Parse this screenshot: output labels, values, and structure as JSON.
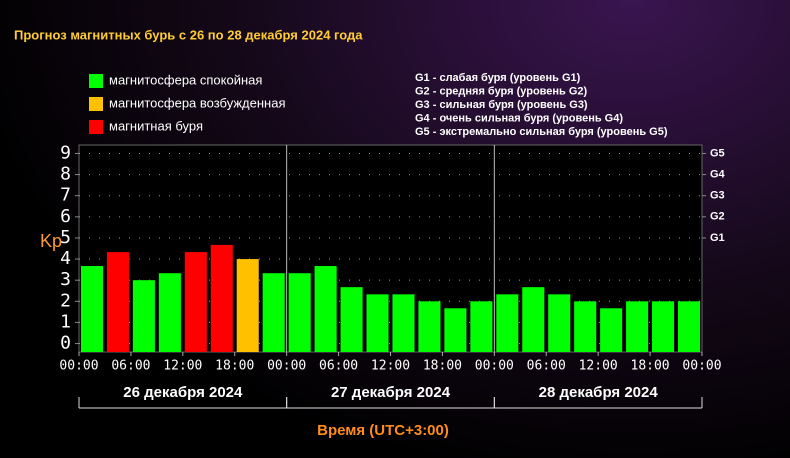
{
  "chart_data": {
    "type": "bar",
    "title": "Прогноз магнитных бурь с 26 по 28 декабря 2024 года",
    "ylabel": "Kp",
    "xlabel": "Время (UTC+3:00)",
    "legend": [
      {
        "name": "магнитосфера спокойная",
        "color": "#00ff00"
      },
      {
        "name": "магнитосфера возбужденная",
        "color": "#ffc000"
      },
      {
        "name": "магнитная буря",
        "color": "#ff0000"
      }
    ],
    "notes": [
      "G1 - слабая буря (уровень G1)",
      "G2 - средняя буря (уровень G2)",
      "G3 - сильная буря (уровень G3)",
      "G4 - очень сильная буря (уровень G4)",
      "G5 - экстремально сильная буря (уровень G5)"
    ],
    "x": [
      1.5,
      4.5,
      7.5,
      10.5,
      13.5,
      16.5,
      19.5,
      22.5,
      25.5,
      28.5,
      31.5,
      34.5,
      37.5,
      40.5,
      43.5,
      46.5,
      49.5,
      52.5,
      55.5,
      58.5,
      61.5,
      64.5,
      67.5,
      70.5
    ],
    "values": [
      3.67,
      4.33,
      3.0,
      3.33,
      4.33,
      4.67,
      4.0,
      3.33,
      3.33,
      3.67,
      2.67,
      2.33,
      2.33,
      2.0,
      1.67,
      2.0,
      2.33,
      2.67,
      2.33,
      2.0,
      1.67,
      2.0,
      2.0,
      2.0
    ],
    "colors": [
      "#00ff00",
      "#ff0000",
      "#00ff00",
      "#00ff00",
      "#ff0000",
      "#ff0000",
      "#ffc000",
      "#00ff00",
      "#00ff00",
      "#00ff00",
      "#00ff00",
      "#00ff00",
      "#00ff00",
      "#00ff00",
      "#00ff00",
      "#00ff00",
      "#00ff00",
      "#00ff00",
      "#00ff00",
      "#00ff00",
      "#00ff00",
      "#00ff00",
      "#00ff00",
      "#00ff00"
    ],
    "xlim": [
      0,
      72
    ],
    "xticks": [
      {
        "value": 0,
        "label": "00:00"
      },
      {
        "value": 6,
        "label": "06:00"
      },
      {
        "value": 12,
        "label": "12:00"
      },
      {
        "value": 18,
        "label": "18:00"
      },
      {
        "value": 24,
        "label": "00:00"
      },
      {
        "value": 30,
        "label": "06:00"
      },
      {
        "value": 36,
        "label": "12:00"
      },
      {
        "value": 42,
        "label": "18:00"
      },
      {
        "value": 48,
        "label": "00:00"
      },
      {
        "value": 54,
        "label": "06:00"
      },
      {
        "value": 60,
        "label": "12:00"
      },
      {
        "value": 66,
        "label": "18:00"
      },
      {
        "value": 72,
        "label": "00:00"
      }
    ],
    "days": [
      {
        "label": "26 декабря 2024",
        "start": 0,
        "end": 24
      },
      {
        "label": "27 декабря 2024",
        "start": 24,
        "end": 48
      },
      {
        "label": "28 декабря 2024",
        "start": 48,
        "end": 72
      }
    ],
    "ylim": [
      -0.4,
      9.4
    ],
    "yticks": [
      0,
      1,
      2,
      3,
      4,
      5,
      6,
      7,
      8,
      9
    ],
    "y2ticks": [
      {
        "value": 5,
        "label": "G1"
      },
      {
        "value": 6,
        "label": "G2"
      },
      {
        "value": 7,
        "label": "G3"
      },
      {
        "value": 8,
        "label": "G4"
      },
      {
        "value": 9,
        "label": "G5"
      }
    ],
    "grid": true
  }
}
